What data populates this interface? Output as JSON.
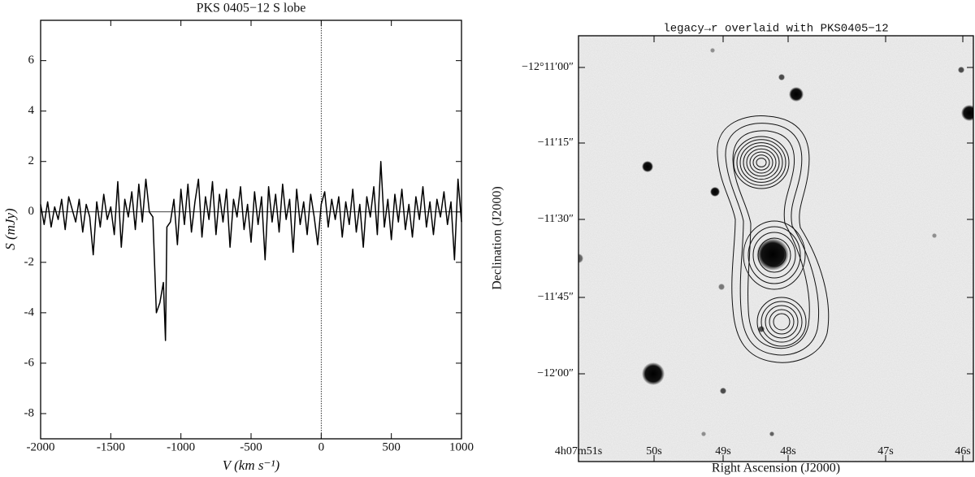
{
  "chart_data": [
    {
      "type": "line",
      "title": "PKS 0405−12 S lobe",
      "xlabel": "V (km s⁻¹)",
      "ylabel": "S (mJy)",
      "color": "#000000",
      "xlim": [
        -2000,
        1000
      ],
      "ylim": [
        -9,
        7.6
      ],
      "xticks": [
        -2000,
        -1500,
        -1000,
        -500,
        0,
        500,
        1000
      ],
      "yticks": [
        -8,
        -6,
        -4,
        -2,
        0,
        2,
        4,
        6
      ],
      "x": [
        -2000,
        -1975,
        -1950,
        -1925,
        -1900,
        -1875,
        -1850,
        -1825,
        -1800,
        -1775,
        -1750,
        -1725,
        -1700,
        -1675,
        -1650,
        -1625,
        -1600,
        -1575,
        -1550,
        -1525,
        -1500,
        -1475,
        -1450,
        -1425,
        -1400,
        -1375,
        -1350,
        -1325,
        -1300,
        -1275,
        -1250,
        -1225,
        -1200,
        -1175,
        -1150,
        -1125,
        -1110,
        -1100,
        -1075,
        -1050,
        -1025,
        -1000,
        -975,
        -950,
        -925,
        -900,
        -875,
        -850,
        -825,
        -800,
        -775,
        -750,
        -725,
        -700,
        -675,
        -650,
        -625,
        -600,
        -575,
        -550,
        -525,
        -500,
        -475,
        -450,
        -425,
        -400,
        -375,
        -350,
        -325,
        -300,
        -275,
        -250,
        -225,
        -200,
        -175,
        -150,
        -125,
        -100,
        -75,
        -50,
        -25,
        0,
        25,
        50,
        75,
        100,
        125,
        150,
        175,
        200,
        225,
        250,
        275,
        300,
        325,
        350,
        375,
        400,
        425,
        450,
        475,
        500,
        525,
        550,
        575,
        600,
        625,
        650,
        675,
        700,
        725,
        750,
        775,
        800,
        825,
        850,
        875,
        900,
        925,
        950,
        975,
        1000
      ],
      "values": [
        0.3,
        -0.5,
        0.4,
        -0.6,
        0.2,
        -0.3,
        0.5,
        -0.7,
        0.6,
        0.1,
        -0.4,
        0.5,
        -0.8,
        0.3,
        -0.2,
        -1.7,
        0.4,
        -0.6,
        0.7,
        -0.3,
        0.2,
        -0.9,
        1.2,
        -1.4,
        0.5,
        -0.2,
        0.8,
        -0.7,
        1.1,
        -0.4,
        1.3,
        0.0,
        -0.2,
        -4.0,
        -3.6,
        -2.8,
        -5.1,
        -0.6,
        -0.4,
        0.5,
        -1.3,
        0.9,
        -0.5,
        1.1,
        -0.8,
        0.4,
        1.3,
        -1.0,
        0.6,
        -0.3,
        1.2,
        -0.9,
        0.7,
        -0.4,
        0.9,
        -1.4,
        0.5,
        -0.2,
        1.0,
        -0.7,
        0.3,
        -1.2,
        0.8,
        -0.5,
        0.6,
        -1.9,
        1.0,
        -0.4,
        0.7,
        -0.8,
        1.1,
        -0.3,
        0.5,
        -1.6,
        0.9,
        -0.5,
        0.4,
        -0.9,
        0.7,
        -0.2,
        -1.3,
        0.3,
        0.8,
        -0.6,
        0.5,
        -0.3,
        0.6,
        -1.0,
        0.4,
        -0.5,
        0.9,
        -0.8,
        0.3,
        -1.4,
        0.6,
        -0.2,
        1.0,
        -0.9,
        2.0,
        -0.6,
        0.5,
        -1.1,
        0.7,
        -0.4,
        0.9,
        -0.7,
        0.3,
        -1.0,
        0.6,
        -0.3,
        1.0,
        -0.6,
        0.4,
        -0.9,
        0.5,
        -0.2,
        0.8,
        -0.5,
        0.4,
        -1.9,
        1.3,
        -0.4
      ]
    },
    {
      "type": "image",
      "title": "legacy→r overlaid with PKS0405−12",
      "xlabel": "Right Ascension (J2000)",
      "ylabel": "Declination (J2000)",
      "xtick_labels": [
        "4h07m51s",
        "50s",
        "49s",
        "48s",
        "47s",
        "46s"
      ],
      "ytick_labels": [
        "−12°11′00″",
        "−11′15″",
        "−11′30″",
        "−11′45″",
        "−12′00″"
      ]
    }
  ]
}
